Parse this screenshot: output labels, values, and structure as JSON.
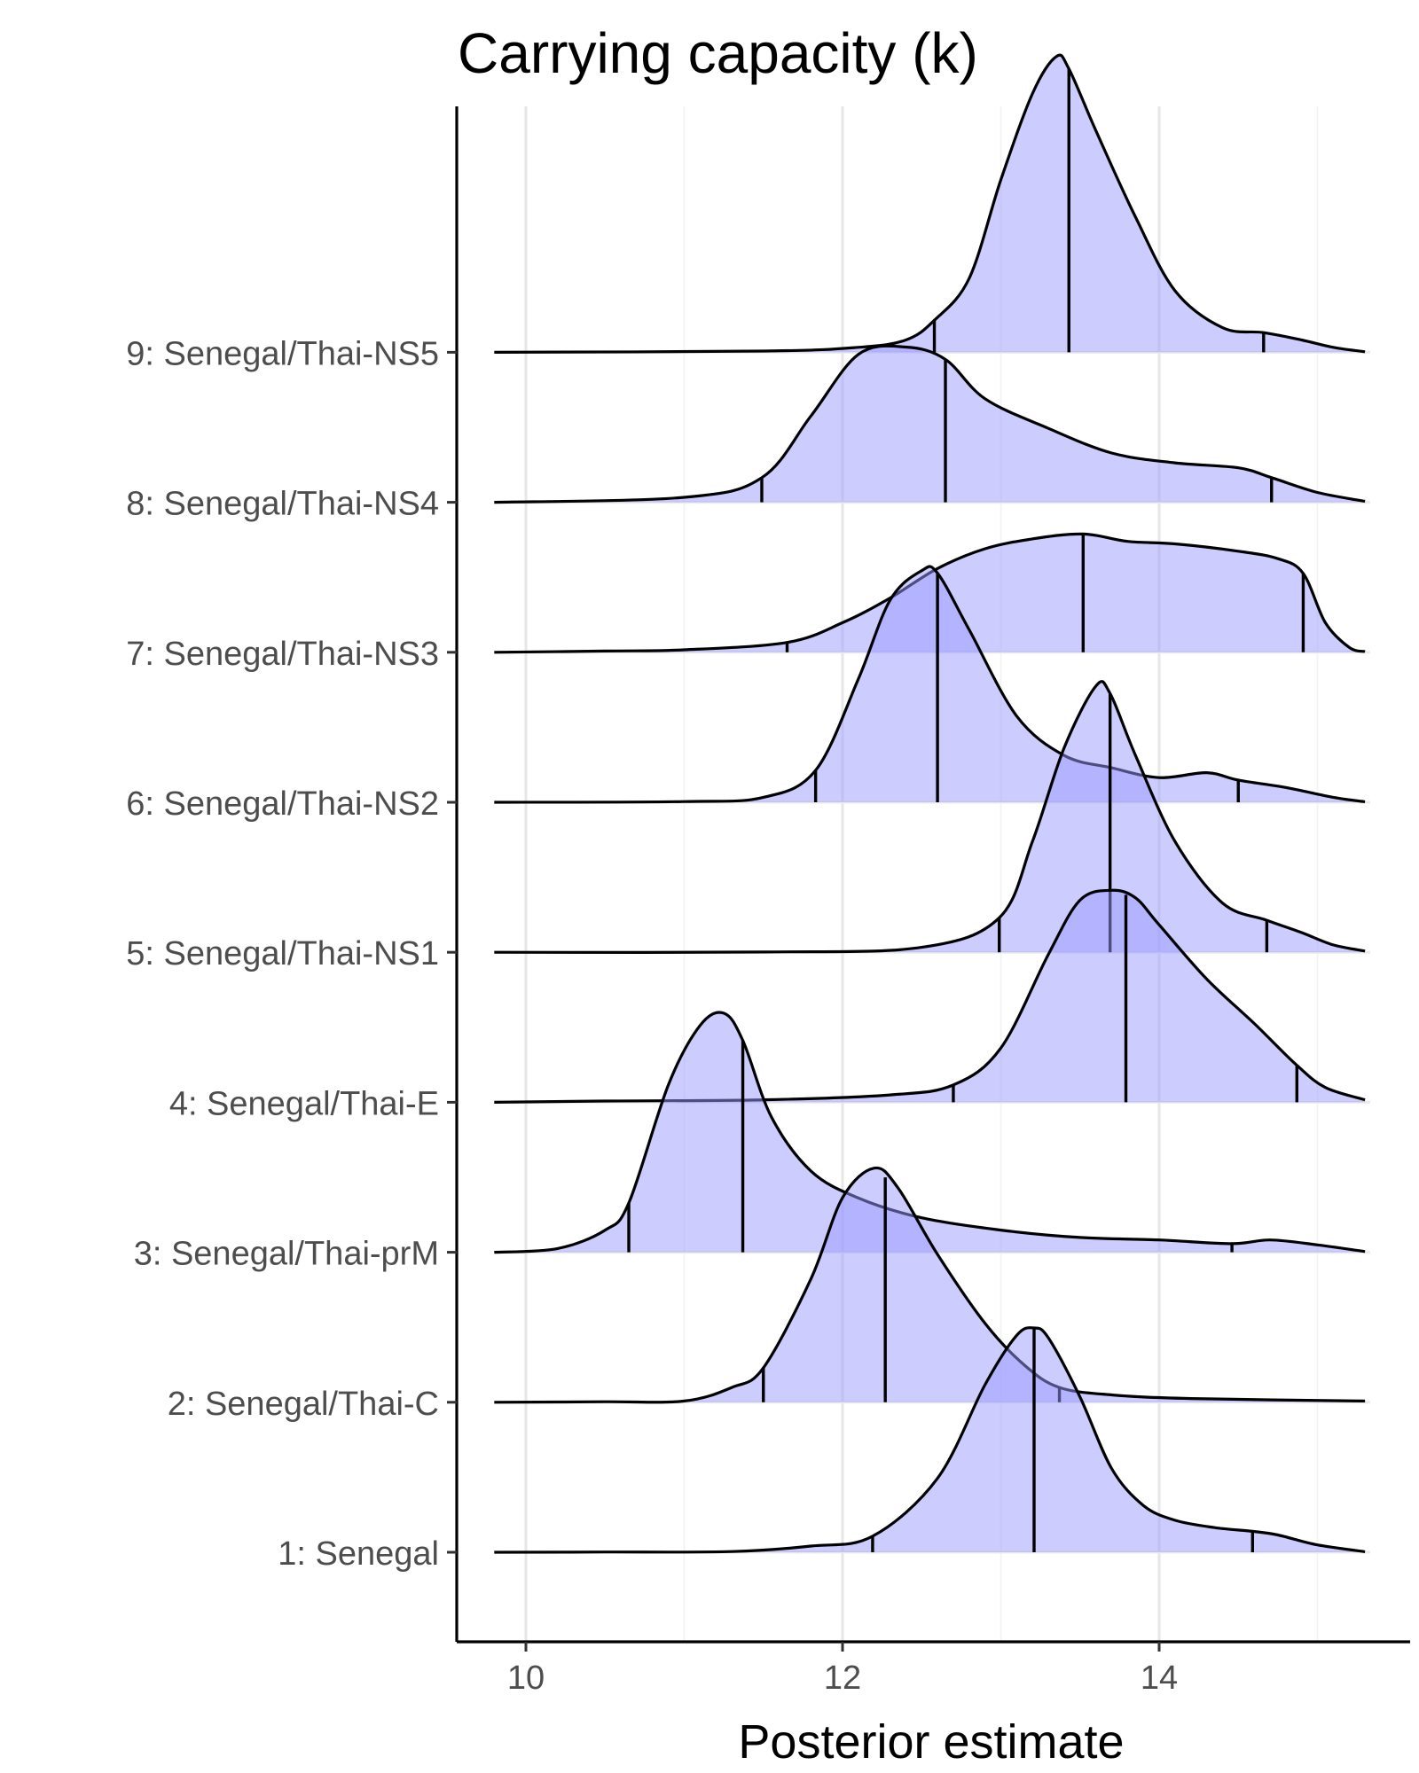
{
  "chart_data": {
    "type": "ridgeline",
    "title": "Carrying capacity (k)",
    "xlabel": "Posterior estimate",
    "ylabel": "",
    "xlim": [
      9.55,
      15.65
    ],
    "x_ticks": [
      10,
      12,
      14
    ],
    "grid": "vertical major and minor gridlines",
    "fill_color": "#9999ff",
    "fill_opacity": 0.5,
    "line_color": "#000000",
    "categories": [
      "1: Senegal",
      "2: Senegal/Thai-C",
      "3: Senegal/Thai-prM",
      "4: Senegal/Thai-E",
      "5: Senegal/Thai-NS1",
      "6: Senegal/Thai-NS2",
      "7: Senegal/Thai-NS3",
      "8: Senegal/Thai-NS4",
      "9: Senegal/Thai-NS5"
    ],
    "series": [
      {
        "name": "1: Senegal",
        "quantiles": [
          12.19,
          13.21,
          14.59
        ],
        "density": [
          [
            9.8,
            0
          ],
          [
            10.5,
            0.001
          ],
          [
            11.3,
            0.003
          ],
          [
            11.8,
            0.025
          ],
          [
            12.19,
            0.065
          ],
          [
            12.6,
            0.3
          ],
          [
            12.9,
            0.68
          ],
          [
            13.1,
            0.88
          ],
          [
            13.21,
            0.91
          ],
          [
            13.3,
            0.87
          ],
          [
            13.5,
            0.63
          ],
          [
            13.7,
            0.34
          ],
          [
            13.9,
            0.19
          ],
          [
            14.1,
            0.13
          ],
          [
            14.35,
            0.1
          ],
          [
            14.59,
            0.085
          ],
          [
            14.75,
            0.07
          ],
          [
            15.0,
            0.03
          ],
          [
            15.3,
            0.002
          ]
        ]
      },
      {
        "name": "2: Senegal/Thai-C",
        "quantiles": [
          11.5,
          12.27,
          13.37
        ],
        "density": [
          [
            9.8,
            0
          ],
          [
            10.5,
            0.002
          ],
          [
            11.0,
            0.005
          ],
          [
            11.3,
            0.06
          ],
          [
            11.5,
            0.14
          ],
          [
            11.8,
            0.5
          ],
          [
            12.0,
            0.83
          ],
          [
            12.2,
            0.95
          ],
          [
            12.35,
            0.87
          ],
          [
            12.6,
            0.6
          ],
          [
            12.9,
            0.32
          ],
          [
            13.15,
            0.15
          ],
          [
            13.37,
            0.06
          ],
          [
            13.7,
            0.03
          ],
          [
            14.2,
            0.015
          ],
          [
            15.3,
            0.005
          ]
        ]
      },
      {
        "name": "3: Senegal/Thai-prM",
        "quantiles": [
          10.65,
          11.37,
          14.46
        ],
        "density": [
          [
            9.8,
            0
          ],
          [
            10.2,
            0.015
          ],
          [
            10.5,
            0.09
          ],
          [
            10.65,
            0.2
          ],
          [
            10.9,
            0.68
          ],
          [
            11.1,
            0.92
          ],
          [
            11.25,
            0.97
          ],
          [
            11.37,
            0.86
          ],
          [
            11.55,
            0.55
          ],
          [
            11.8,
            0.33
          ],
          [
            12.1,
            0.22
          ],
          [
            12.5,
            0.14
          ],
          [
            13.0,
            0.09
          ],
          [
            13.5,
            0.06
          ],
          [
            14.0,
            0.05
          ],
          [
            14.46,
            0.035
          ],
          [
            14.7,
            0.05
          ],
          [
            15.0,
            0.03
          ],
          [
            15.3,
            0.003
          ]
        ]
      },
      {
        "name": "4: Senegal/Thai-E",
        "quantiles": [
          12.7,
          13.79,
          14.87
        ],
        "density": [
          [
            9.8,
            0
          ],
          [
            10.5,
            0.005
          ],
          [
            11.5,
            0.01
          ],
          [
            12.3,
            0.03
          ],
          [
            12.7,
            0.07
          ],
          [
            13.0,
            0.22
          ],
          [
            13.3,
            0.6
          ],
          [
            13.5,
            0.82
          ],
          [
            13.7,
            0.86
          ],
          [
            13.85,
            0.83
          ],
          [
            14.0,
            0.72
          ],
          [
            14.3,
            0.5
          ],
          [
            14.6,
            0.32
          ],
          [
            14.87,
            0.15
          ],
          [
            15.05,
            0.06
          ],
          [
            15.3,
            0.01
          ]
        ]
      },
      {
        "name": "5: Senegal/Thai-NS1",
        "quantiles": [
          12.99,
          13.69,
          14.68
        ],
        "density": [
          [
            9.8,
            0
          ],
          [
            11.5,
            0.001
          ],
          [
            12.5,
            0.02
          ],
          [
            12.99,
            0.14
          ],
          [
            13.2,
            0.45
          ],
          [
            13.4,
            0.83
          ],
          [
            13.6,
            1.08
          ],
          [
            13.69,
            1.05
          ],
          [
            13.85,
            0.8
          ],
          [
            14.1,
            0.45
          ],
          [
            14.4,
            0.2
          ],
          [
            14.68,
            0.13
          ],
          [
            14.9,
            0.08
          ],
          [
            15.1,
            0.03
          ],
          [
            15.3,
            0.005
          ]
        ]
      },
      {
        "name": "6: Senegal/Thai-NS2",
        "quantiles": [
          11.83,
          12.6,
          14.5
        ],
        "density": [
          [
            9.8,
            0
          ],
          [
            11.0,
            0.003
          ],
          [
            11.5,
            0.02
          ],
          [
            11.83,
            0.13
          ],
          [
            12.1,
            0.5
          ],
          [
            12.3,
            0.82
          ],
          [
            12.5,
            0.94
          ],
          [
            12.6,
            0.93
          ],
          [
            12.8,
            0.7
          ],
          [
            13.1,
            0.35
          ],
          [
            13.4,
            0.19
          ],
          [
            13.7,
            0.14
          ],
          [
            14.0,
            0.1
          ],
          [
            14.3,
            0.12
          ],
          [
            14.5,
            0.09
          ],
          [
            14.8,
            0.06
          ],
          [
            15.1,
            0.02
          ],
          [
            15.3,
            0.002
          ]
        ]
      },
      {
        "name": "7: Senegal/Thai-NS3",
        "quantiles": [
          11.65,
          13.52,
          14.91
        ],
        "density": [
          [
            9.8,
            0
          ],
          [
            10.5,
            0.005
          ],
          [
            11.0,
            0.01
          ],
          [
            11.65,
            0.04
          ],
          [
            12.0,
            0.12
          ],
          [
            12.3,
            0.22
          ],
          [
            12.6,
            0.34
          ],
          [
            12.9,
            0.42
          ],
          [
            13.2,
            0.46
          ],
          [
            13.52,
            0.48
          ],
          [
            13.8,
            0.45
          ],
          [
            14.1,
            0.44
          ],
          [
            14.5,
            0.41
          ],
          [
            14.75,
            0.38
          ],
          [
            14.91,
            0.32
          ],
          [
            15.05,
            0.12
          ],
          [
            15.2,
            0.02
          ],
          [
            15.3,
            0.003
          ]
        ]
      },
      {
        "name": "8: Senegal/Thai-NS4",
        "quantiles": [
          11.49,
          12.65,
          14.71
        ],
        "density": [
          [
            9.8,
            0
          ],
          [
            11.0,
            0.02
          ],
          [
            11.49,
            0.1
          ],
          [
            11.8,
            0.35
          ],
          [
            12.1,
            0.6
          ],
          [
            12.4,
            0.63
          ],
          [
            12.65,
            0.58
          ],
          [
            12.9,
            0.42
          ],
          [
            13.3,
            0.3
          ],
          [
            13.7,
            0.2
          ],
          [
            14.1,
            0.16
          ],
          [
            14.5,
            0.14
          ],
          [
            14.71,
            0.1
          ],
          [
            15.0,
            0.04
          ],
          [
            15.3,
            0.004
          ]
        ]
      },
      {
        "name": "9: Senegal/Thai-NS5",
        "quantiles": [
          12.58,
          13.43,
          14.66
        ],
        "density": [
          [
            9.8,
            0
          ],
          [
            11.5,
            0.005
          ],
          [
            12.1,
            0.02
          ],
          [
            12.4,
            0.05
          ],
          [
            12.58,
            0.13
          ],
          [
            12.8,
            0.3
          ],
          [
            13.0,
            0.7
          ],
          [
            13.2,
            1.05
          ],
          [
            13.35,
            1.2
          ],
          [
            13.43,
            1.15
          ],
          [
            13.6,
            0.9
          ],
          [
            13.85,
            0.55
          ],
          [
            14.1,
            0.25
          ],
          [
            14.4,
            0.1
          ],
          [
            14.66,
            0.08
          ],
          [
            14.9,
            0.05
          ],
          [
            15.1,
            0.02
          ],
          [
            15.3,
            0.002
          ]
        ]
      }
    ]
  }
}
